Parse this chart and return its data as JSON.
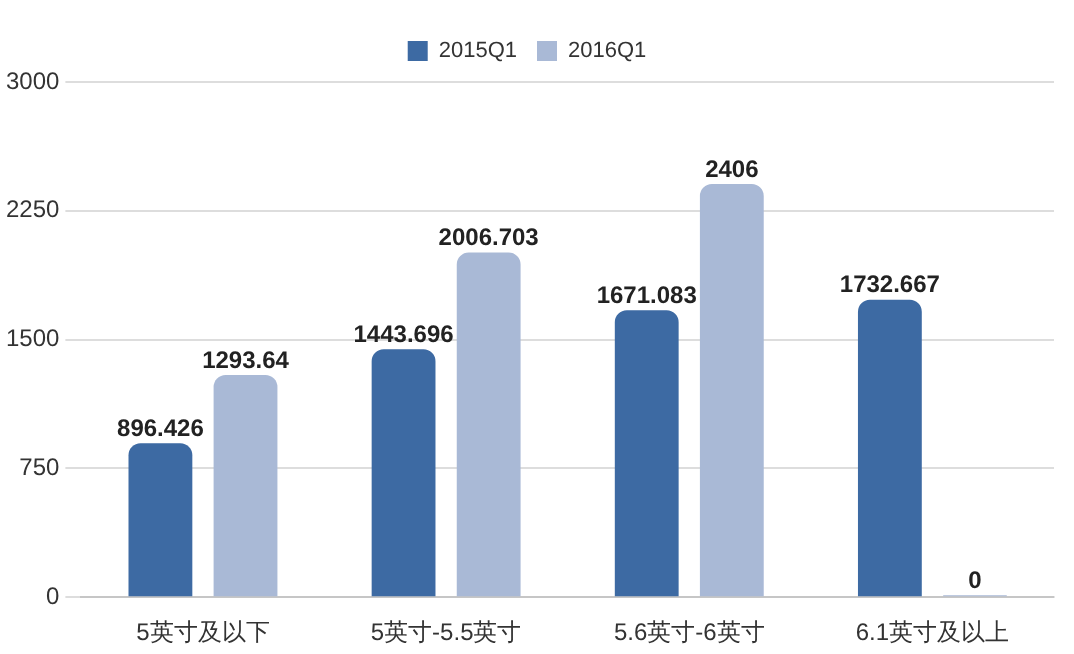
{
  "chart_data": {
    "type": "bar",
    "categories": [
      "5英寸及以下",
      "5英寸-5.5英寸",
      "5.6英寸-6英寸",
      "6.1英寸及以上"
    ],
    "series": [
      {
        "name": "2015Q1",
        "color": "#3d6aa3",
        "values": [
          896.426,
          1443.696,
          1671.083,
          1732.667
        ]
      },
      {
        "name": "2016Q1",
        "color": "#a9b9d6",
        "values": [
          1293.64,
          2006.703,
          2406,
          0
        ]
      }
    ],
    "ylim": [
      0,
      3000
    ],
    "yticks": [
      0,
      750,
      1500,
      2250,
      3000
    ],
    "grid": "y",
    "legend": "top",
    "data_labels": true
  }
}
